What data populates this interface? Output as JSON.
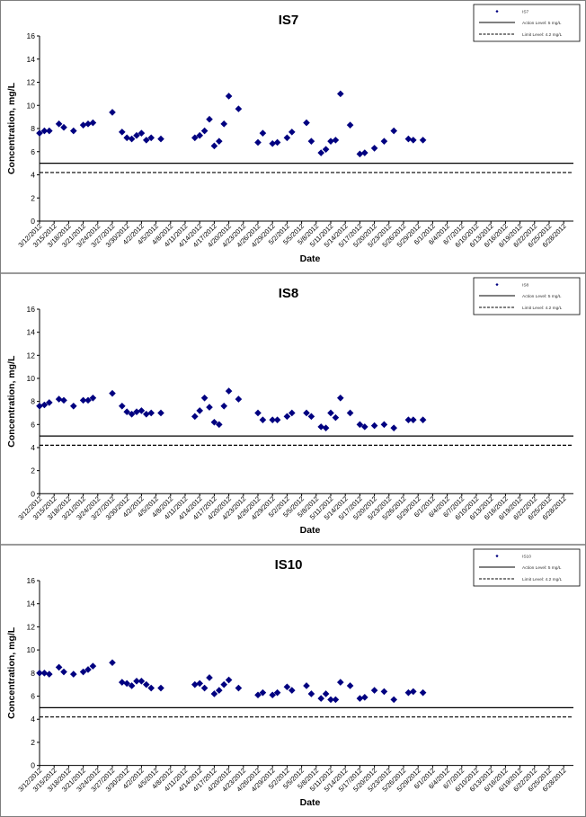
{
  "charts": [
    {
      "chart_data": {
        "type": "scatter",
        "title": "IS7",
        "xlabel": "Date",
        "ylabel": "Concentration, mg/L",
        "ylim": [
          0,
          16
        ],
        "yticks": [
          "0",
          "2",
          "4",
          "6",
          "8",
          "10",
          "12",
          "14",
          "16"
        ],
        "xlim": [
          "3/12/2012",
          "6/30/2012"
        ],
        "xtick_labels": [
          "3/12/2012",
          "3/15/2012",
          "3/18/2012",
          "3/21/2012",
          "3/24/2012",
          "3/27/2012",
          "3/30/2012",
          "4/2/2012",
          "4/5/2012",
          "4/8/2012",
          "4/11/2012",
          "4/14/2012",
          "4/17/2012",
          "4/20/2012",
          "4/23/2012",
          "4/26/2012",
          "4/29/2012",
          "5/2/2012",
          "5/5/2012",
          "5/8/2012",
          "5/11/2012",
          "5/14/2012",
          "5/17/2012",
          "5/20/2012",
          "5/23/2012",
          "5/26/2012",
          "5/29/2012",
          "6/1/2012",
          "6/4/2012",
          "6/7/2012",
          "6/10/2012",
          "6/13/2012",
          "6/16/2012",
          "6/19/2012",
          "6/22/2012",
          "6/25/2012",
          "6/28/2012"
        ],
        "series": [
          {
            "name": "IS7",
            "marker": "diamond",
            "color": "#000080",
            "x": [
              "3/12/2012",
              "3/13/2012",
              "3/14/2012",
              "3/16/2012",
              "3/17/2012",
              "3/19/2012",
              "3/21/2012",
              "3/22/2012",
              "3/23/2012",
              "3/27/2012",
              "3/29/2012",
              "3/30/2012",
              "3/31/2012",
              "4/1/2012",
              "4/2/2012",
              "4/3/2012",
              "4/4/2012",
              "4/6/2012",
              "4/13/2012",
              "4/14/2012",
              "4/15/2012",
              "4/16/2012",
              "4/17/2012",
              "4/18/2012",
              "4/19/2012",
              "4/20/2012",
              "4/22/2012",
              "4/26/2012",
              "4/27/2012",
              "4/29/2012",
              "4/30/2012",
              "5/2/2012",
              "5/3/2012",
              "5/6/2012",
              "5/7/2012",
              "5/9/2012",
              "5/10/2012",
              "5/11/2012",
              "5/12/2012",
              "5/13/2012",
              "5/15/2012",
              "5/17/2012",
              "5/18/2012",
              "5/20/2012",
              "5/22/2012",
              "5/24/2012",
              "5/27/2012",
              "5/28/2012",
              "5/30/2012"
            ],
            "y": [
              7.6,
              7.8,
              7.8,
              8.4,
              8.1,
              7.8,
              8.3,
              8.4,
              8.5,
              9.4,
              7.7,
              7.2,
              7.1,
              7.4,
              7.6,
              7.0,
              7.2,
              7.1,
              7.2,
              7.4,
              7.8,
              8.8,
              6.5,
              6.9,
              8.4,
              10.8,
              9.7,
              6.8,
              7.6,
              6.7,
              6.8,
              7.2,
              7.7,
              8.5,
              6.9,
              5.9,
              6.2,
              6.9,
              7.0,
              11.0,
              8.3,
              5.8,
              5.9,
              6.3,
              6.9,
              7.8,
              7.1,
              7.0,
              7.0
            ]
          }
        ],
        "hlines": [
          {
            "name": "Action Level: 5 mg/L",
            "value": 5,
            "style": "solid"
          },
          {
            "name": "Limit Level: 4.2 mg/L",
            "value": 4.2,
            "style": "dashed"
          }
        ],
        "legend": "top-right",
        "grid": false
      }
    },
    {
      "chart_data": {
        "type": "scatter",
        "title": "IS8",
        "xlabel": "Date",
        "ylabel": "Concentration, mg/L",
        "ylim": [
          0,
          16
        ],
        "yticks": [
          "0",
          "2",
          "4",
          "6",
          "8",
          "10",
          "12",
          "14",
          "16"
        ],
        "xlim": [
          "3/12/2012",
          "6/30/2012"
        ],
        "xtick_labels": [
          "3/12/2012",
          "3/15/2012",
          "3/18/2012",
          "3/21/2012",
          "3/24/2012",
          "3/27/2012",
          "3/30/2012",
          "4/2/2012",
          "4/5/2012",
          "4/8/2012",
          "4/11/2012",
          "4/14/2012",
          "4/17/2012",
          "4/20/2012",
          "4/23/2012",
          "4/26/2012",
          "4/29/2012",
          "5/2/2012",
          "5/5/2012",
          "5/8/2012",
          "5/11/2012",
          "5/14/2012",
          "5/17/2012",
          "5/20/2012",
          "5/23/2012",
          "5/26/2012",
          "5/29/2012",
          "6/1/2012",
          "6/4/2012",
          "6/7/2012",
          "6/10/2012",
          "6/13/2012",
          "6/16/2012",
          "6/19/2012",
          "6/22/2012",
          "6/25/2012",
          "6/28/2012"
        ],
        "series": [
          {
            "name": "IS8",
            "marker": "diamond",
            "color": "#000080",
            "x": [
              "3/12/2012",
              "3/13/2012",
              "3/14/2012",
              "3/16/2012",
              "3/17/2012",
              "3/19/2012",
              "3/21/2012",
              "3/22/2012",
              "3/23/2012",
              "3/27/2012",
              "3/29/2012",
              "3/30/2012",
              "3/31/2012",
              "4/1/2012",
              "4/2/2012",
              "4/3/2012",
              "4/4/2012",
              "4/6/2012",
              "4/13/2012",
              "4/14/2012",
              "4/15/2012",
              "4/16/2012",
              "4/17/2012",
              "4/18/2012",
              "4/19/2012",
              "4/20/2012",
              "4/22/2012",
              "4/26/2012",
              "4/27/2012",
              "4/29/2012",
              "4/30/2012",
              "5/2/2012",
              "5/3/2012",
              "5/6/2012",
              "5/7/2012",
              "5/9/2012",
              "5/10/2012",
              "5/11/2012",
              "5/12/2012",
              "5/13/2012",
              "5/15/2012",
              "5/17/2012",
              "5/18/2012",
              "5/20/2012",
              "5/22/2012",
              "5/24/2012",
              "5/27/2012",
              "5/28/2012",
              "5/30/2012"
            ],
            "y": [
              7.6,
              7.7,
              7.9,
              8.2,
              8.1,
              7.6,
              8.1,
              8.1,
              8.3,
              8.7,
              7.6,
              7.1,
              6.9,
              7.1,
              7.2,
              6.9,
              7.0,
              7.0,
              6.7,
              7.2,
              8.3,
              7.5,
              6.2,
              6.0,
              7.6,
              8.9,
              8.2,
              7.0,
              6.4,
              6.4,
              6.4,
              6.7,
              7.0,
              7.0,
              6.7,
              5.8,
              5.7,
              7.0,
              6.6,
              8.3,
              7.0,
              6.0,
              5.8,
              5.9,
              6.0,
              5.7,
              6.4,
              6.4,
              6.4
            ]
          }
        ],
        "hlines": [
          {
            "name": "Action Level: 5 mg/L",
            "value": 5,
            "style": "solid"
          },
          {
            "name": "Limit Level: 4.2 mg/L",
            "value": 4.2,
            "style": "dashed"
          }
        ],
        "legend": "top-right",
        "grid": false
      }
    },
    {
      "chart_data": {
        "type": "scatter",
        "title": "IS10",
        "xlabel": "Date",
        "ylabel": "Concentration, mg/L",
        "ylim": [
          0,
          16
        ],
        "yticks": [
          "0",
          "2",
          "4",
          "6",
          "8",
          "10",
          "12",
          "14",
          "16"
        ],
        "xlim": [
          "3/12/2012",
          "6/30/2012"
        ],
        "xtick_labels": [
          "3/12/2012",
          "3/15/2012",
          "3/18/2012",
          "3/21/2012",
          "3/24/2012",
          "3/27/2012",
          "3/30/2012",
          "4/2/2012",
          "4/5/2012",
          "4/8/2012",
          "4/11/2012",
          "4/14/2012",
          "4/17/2012",
          "4/20/2012",
          "4/23/2012",
          "4/26/2012",
          "4/29/2012",
          "5/2/2012",
          "5/5/2012",
          "5/8/2012",
          "5/11/2012",
          "5/14/2012",
          "5/17/2012",
          "5/20/2012",
          "5/23/2012",
          "5/26/2012",
          "5/29/2012",
          "6/1/2012",
          "6/4/2012",
          "6/7/2012",
          "6/10/2012",
          "6/13/2012",
          "6/16/2012",
          "6/19/2012",
          "6/22/2012",
          "6/25/2012",
          "6/28/2012"
        ],
        "series": [
          {
            "name": "IS10",
            "marker": "diamond",
            "color": "#000080",
            "x": [
              "3/12/2012",
              "3/13/2012",
              "3/14/2012",
              "3/16/2012",
              "3/17/2012",
              "3/19/2012",
              "3/21/2012",
              "3/22/2012",
              "3/23/2012",
              "3/27/2012",
              "3/29/2012",
              "3/30/2012",
              "3/31/2012",
              "4/1/2012",
              "4/2/2012",
              "4/3/2012",
              "4/4/2012",
              "4/6/2012",
              "4/13/2012",
              "4/14/2012",
              "4/15/2012",
              "4/16/2012",
              "4/17/2012",
              "4/18/2012",
              "4/19/2012",
              "4/20/2012",
              "4/22/2012",
              "4/26/2012",
              "4/27/2012",
              "4/29/2012",
              "4/30/2012",
              "5/2/2012",
              "5/3/2012",
              "5/6/2012",
              "5/7/2012",
              "5/9/2012",
              "5/10/2012",
              "5/11/2012",
              "5/12/2012",
              "5/13/2012",
              "5/15/2012",
              "5/17/2012",
              "5/18/2012",
              "5/20/2012",
              "5/22/2012",
              "5/24/2012",
              "5/27/2012",
              "5/28/2012",
              "5/30/2012"
            ],
            "y": [
              8.0,
              8.0,
              7.9,
              8.5,
              8.1,
              7.9,
              8.1,
              8.3,
              8.6,
              8.9,
              7.2,
              7.1,
              6.9,
              7.3,
              7.3,
              7.0,
              6.7,
              6.7,
              7.0,
              7.1,
              6.7,
              7.6,
              6.2,
              6.5,
              7.0,
              7.4,
              6.7,
              6.1,
              6.3,
              6.1,
              6.3,
              6.8,
              6.5,
              6.9,
              6.2,
              5.8,
              6.2,
              5.7,
              5.7,
              7.2,
              6.9,
              5.8,
              5.9,
              6.5,
              6.4,
              5.7,
              6.3,
              6.4,
              6.3
            ]
          }
        ],
        "hlines": [
          {
            "name": "Action Level: 5 mg/L",
            "value": 5,
            "style": "solid"
          },
          {
            "name": "Limit Level: 4.2 mg/L",
            "value": 4.2,
            "style": "dashed"
          }
        ],
        "legend": "top-right",
        "grid": false
      }
    }
  ]
}
